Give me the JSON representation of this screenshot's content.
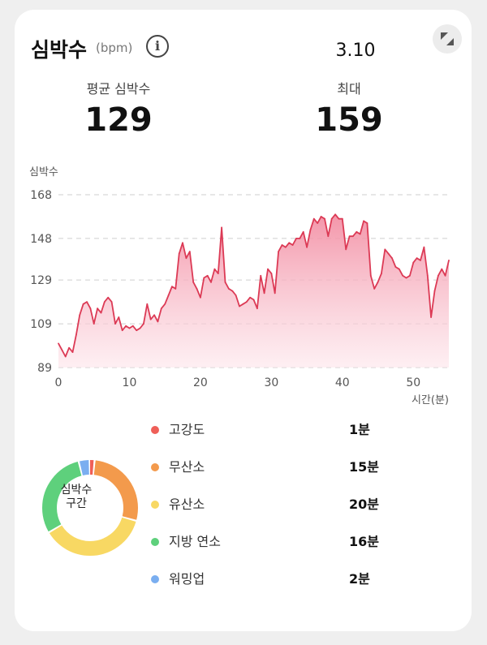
{
  "header": {
    "title": "심박수",
    "unit": "(bpm)",
    "info_icon": "info-icon",
    "date": "3.10",
    "expand_icon": "expand-icon"
  },
  "stats": {
    "avg_label": "평균 심박수",
    "avg_value": "129",
    "max_label": "최대",
    "max_value": "159"
  },
  "chart_data": {
    "type": "area",
    "ylabel": "심박수",
    "xlabel": "시간(분)",
    "ylim": [
      89,
      168
    ],
    "xlim": [
      0,
      55
    ],
    "yticks": [
      168,
      148,
      129,
      109,
      89
    ],
    "xticks": [
      0,
      10,
      20,
      30,
      40,
      50
    ],
    "grid": "horizontal-dashed",
    "color": "#e0405a",
    "fill_color": "#f7a8b6",
    "x": [
      0,
      0.5,
      1,
      1.5,
      2,
      2.5,
      3,
      3.5,
      4,
      4.5,
      5,
      5.5,
      6,
      6.5,
      7,
      7.5,
      8,
      8.5,
      9,
      9.5,
      10,
      10.5,
      11,
      11.5,
      12,
      12.5,
      13,
      13.5,
      14,
      14.5,
      15,
      15.5,
      16,
      16.5,
      17,
      17.5,
      18,
      18.5,
      19,
      19.5,
      20,
      20.5,
      21,
      21.5,
      22,
      22.5,
      23,
      23.5,
      24,
      24.5,
      25,
      25.5,
      26,
      26.5,
      27,
      27.5,
      28,
      28.5,
      29,
      29.5,
      30,
      30.5,
      31,
      31.5,
      32,
      32.5,
      33,
      33.5,
      34,
      34.5,
      35,
      35.5,
      36,
      36.5,
      37,
      37.5,
      38,
      38.5,
      39,
      39.5,
      40,
      40.5,
      41,
      41.5,
      42,
      42.5,
      43,
      43.5,
      44,
      44.5,
      45,
      45.5,
      46,
      46.5,
      47,
      47.5,
      48,
      48.5,
      49,
      49.5,
      50,
      50.5,
      51,
      51.5,
      52,
      52.5,
      53,
      53.5,
      54,
      54.5,
      55
    ],
    "values": [
      100,
      97,
      94,
      98,
      96,
      104,
      113,
      118,
      119,
      116,
      109,
      116,
      114,
      119,
      121,
      119,
      109,
      112,
      106,
      108,
      107,
      108,
      106,
      107,
      109,
      118,
      111,
      113,
      110,
      116,
      118,
      122,
      126,
      125,
      141,
      146,
      139,
      142,
      128,
      125,
      121,
      130,
      131,
      128,
      134,
      132,
      153,
      128,
      125,
      124,
      122,
      117,
      118,
      119,
      121,
      120,
      116,
      131,
      123,
      134,
      132,
      123,
      142,
      145,
      144,
      146,
      145,
      148,
      148,
      151,
      144,
      152,
      157,
      155,
      158,
      157,
      149,
      157,
      159,
      157,
      157,
      143,
      149,
      149,
      151,
      150,
      156,
      155,
      131,
      125,
      128,
      132,
      143,
      141,
      139,
      135,
      134,
      131,
      130,
      131,
      137,
      139,
      138,
      144,
      131,
      112,
      124,
      131,
      134,
      131,
      138
    ]
  },
  "zones": [
    {
      "label": "고강도",
      "time": "1분",
      "minutes": 1,
      "color": "#ef5f58"
    },
    {
      "label": "무산소",
      "time": "15분",
      "minutes": 15,
      "color": "#f39a4c"
    },
    {
      "label": "유산소",
      "time": "20분",
      "minutes": 20,
      "color": "#f8d863"
    },
    {
      "label": "지방 연소",
      "time": "16분",
      "minutes": 16,
      "color": "#5ed07c"
    },
    {
      "label": "워밍업",
      "time": "2분",
      "minutes": 2,
      "color": "#7aaef0"
    }
  ],
  "donut": {
    "label_line1": "심박수",
    "label_line2": "구간"
  }
}
